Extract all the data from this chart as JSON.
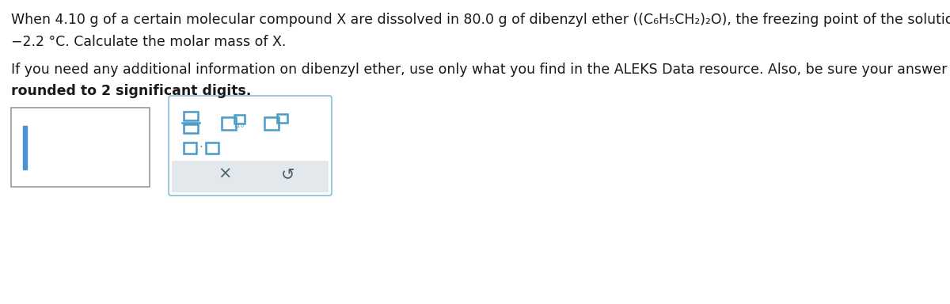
{
  "line1": "When 4.10 g of a certain molecular compound X are dissolved in 80.0 g of dibenzyl ether",
  "formula": " ((C₆H₅CH₂)₂O),",
  "line1_end": " the freezing point of the solution is measured to be",
  "line2": "−2.2 °C. Calculate the molar mass of X.",
  "line3": "If you need any additional information on dibenzyl ether, use only what you find in the ALEKS Data resource. Also, be sure your answer has a unit symbol, and is",
  "line4": "rounded to 2 significant digits.",
  "bg_color": "#ffffff",
  "text_color": "#1a1a1a",
  "icon_color": "#4a9cc7",
  "input_border": "#aaaaaa",
  "panel_border": "#a0c8dc",
  "panel_bg": "#ffffff",
  "bottom_bg": "#e2e8ec",
  "bottom_text": "#4a6070",
  "cursor_color": "#4a90d9"
}
